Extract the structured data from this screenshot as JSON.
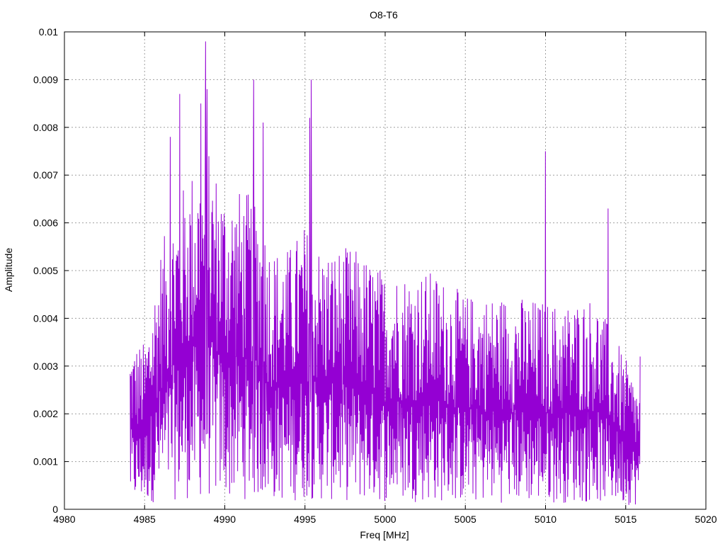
{
  "chart_data": {
    "type": "line",
    "title": "O8-T6",
    "xlabel": "Freq [MHz]",
    "ylabel": "Amplitude",
    "xlim": [
      4980,
      5020
    ],
    "ylim": [
      0,
      0.01
    ],
    "x_ticks": [
      4980,
      4985,
      4990,
      4995,
      5000,
      5005,
      5010,
      5015,
      5020
    ],
    "x_tick_labels": [
      "4980",
      "4985",
      "4990",
      "4995",
      "5000",
      "5005",
      "5010",
      "5015",
      "5020"
    ],
    "y_ticks": [
      0,
      0.001,
      0.002,
      0.003,
      0.004,
      0.005,
      0.006,
      0.007,
      0.008,
      0.009,
      0.01
    ],
    "y_tick_labels": [
      "0",
      "0.001",
      "0.002",
      "0.003",
      "0.004",
      "0.005",
      "0.006",
      "0.007",
      "0.008",
      "0.009",
      "0.01"
    ],
    "grid": true,
    "series": [
      {
        "color": "#9400d3",
        "x_range": [
          4984.1,
          5015.9
        ],
        "peaks": [
          {
            "x": 4986.6,
            "y": 0.0078
          },
          {
            "x": 4987.2,
            "y": 0.0087
          },
          {
            "x": 4988.5,
            "y": 0.0085
          },
          {
            "x": 4988.8,
            "y": 0.0098
          },
          {
            "x": 4988.9,
            "y": 0.0088
          },
          {
            "x": 4991.8,
            "y": 0.009
          },
          {
            "x": 4992.4,
            "y": 0.0081
          },
          {
            "x": 4995.3,
            "y": 0.0082
          },
          {
            "x": 4995.4,
            "y": 0.009
          },
          {
            "x": 5010.0,
            "y": 0.0075
          },
          {
            "x": 5013.9,
            "y": 0.0063
          },
          {
            "x": 5015.9,
            "y": 0.0032
          }
        ],
        "envelope": [
          {
            "x": 4984.1,
            "y": 0.0035
          },
          {
            "x": 4985.0,
            "y": 0.0035
          },
          {
            "x": 4986.0,
            "y": 0.0055
          },
          {
            "x": 4987.0,
            "y": 0.0065
          },
          {
            "x": 4988.0,
            "y": 0.0072
          },
          {
            "x": 4989.0,
            "y": 0.0075
          },
          {
            "x": 4990.0,
            "y": 0.0068
          },
          {
            "x": 4991.0,
            "y": 0.0067
          },
          {
            "x": 4992.0,
            "y": 0.0066
          },
          {
            "x": 4993.0,
            "y": 0.0055
          },
          {
            "x": 4994.0,
            "y": 0.0055
          },
          {
            "x": 4995.0,
            "y": 0.006
          },
          {
            "x": 4996.0,
            "y": 0.0055
          },
          {
            "x": 4998.0,
            "y": 0.0055
          },
          {
            "x": 5000.0,
            "y": 0.005
          },
          {
            "x": 5003.0,
            "y": 0.005
          },
          {
            "x": 5005.0,
            "y": 0.0045
          },
          {
            "x": 5008.0,
            "y": 0.0045
          },
          {
            "x": 5011.0,
            "y": 0.0043
          },
          {
            "x": 5013.0,
            "y": 0.0045
          },
          {
            "x": 5014.5,
            "y": 0.0035
          },
          {
            "x": 5015.9,
            "y": 0.0025
          }
        ]
      }
    ]
  }
}
